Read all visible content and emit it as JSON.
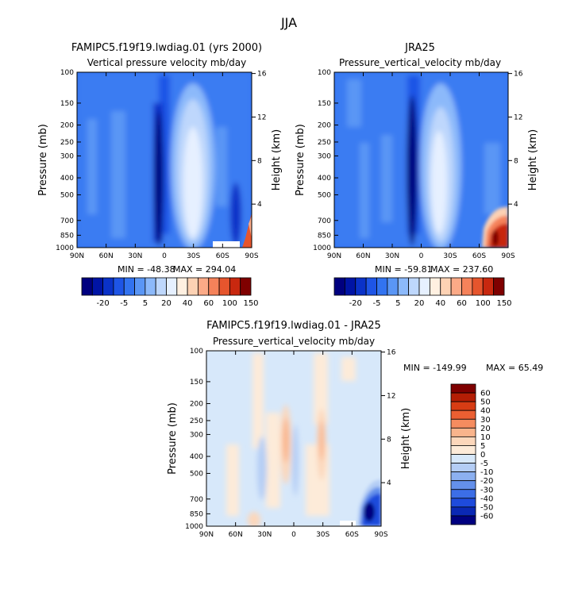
{
  "figure": {
    "title": "JJA"
  },
  "chart_data": [
    {
      "type": "heatmap",
      "title": "FAMIPC5.f19f19.lwdiag.01 (yrs 2000)",
      "subtitle": "Vertical pressure velocity mb/day",
      "ylabel": "Pressure (mb)",
      "y2label": "Height (km)",
      "x_ticks": [
        "90N",
        "60N",
        "30N",
        "0",
        "30S",
        "60S",
        "90S"
      ],
      "y_ticks": [
        "100",
        "150",
        "200",
        "250",
        "300",
        "400",
        "500",
        "700",
        "850",
        "1000"
      ],
      "y2_ticks": [
        "16",
        "12",
        "8",
        "4"
      ],
      "min_text": "MIN = -48.38",
      "max_text": "MAX = 294.04",
      "colorbar_labels": [
        "-20",
        "-5",
        "5",
        "20",
        "40",
        "60",
        "100",
        "150"
      ]
    },
    {
      "type": "heatmap",
      "title": "JRA25",
      "subtitle": "Pressure_vertical_velocity mb/day",
      "ylabel": "Pressure (mb)",
      "y2label": "Height (km)",
      "x_ticks": [
        "90N",
        "60N",
        "30N",
        "0",
        "30S",
        "60S",
        "90S"
      ],
      "y_ticks": [
        "100",
        "150",
        "200",
        "250",
        "300",
        "400",
        "500",
        "700",
        "850",
        "1000"
      ],
      "y2_ticks": [
        "16",
        "12",
        "8",
        "4"
      ],
      "min_text": "MIN = -59.81",
      "max_text": "MAX = 237.60",
      "colorbar_labels": [
        "-20",
        "-5",
        "5",
        "20",
        "40",
        "60",
        "100",
        "150"
      ]
    },
    {
      "type": "heatmap",
      "title": "FAMIPC5.f19f19.lwdiag.01 - JRA25",
      "subtitle": "Pressure_vertical_velocity mb/day",
      "ylabel": "Pressure (mb)",
      "y2label": "Height (km)",
      "x_ticks": [
        "90N",
        "60N",
        "30N",
        "0",
        "30S",
        "60S",
        "90S"
      ],
      "y_ticks": [
        "100",
        "150",
        "200",
        "250",
        "300",
        "400",
        "500",
        "700",
        "850",
        "1000"
      ],
      "y2_ticks": [
        "16",
        "12",
        "8",
        "4"
      ],
      "min_text": "MIN = -149.99",
      "max_text": "MAX = 65.49",
      "colorbar_labels": [
        "60",
        "50",
        "40",
        "30",
        "20",
        "10",
        "5",
        "0",
        "-5",
        "-10",
        "-20",
        "-30",
        "-40",
        "-50",
        "-60"
      ]
    }
  ],
  "colors": {
    "field_scale": [
      "#00007f",
      "#0014a5",
      "#0a32c8",
      "#1e55e6",
      "#3273f0",
      "#5a96f5",
      "#8cb9fa",
      "#bed7fc",
      "#e6f0ff",
      "#fff0e1",
      "#fdd2b4",
      "#fbaa87",
      "#f5825a",
      "#e6552d",
      "#c8280f",
      "#7f0000"
    ],
    "diff_scale": [
      "#7f0000",
      "#b41e05",
      "#d73c14",
      "#eb5f32",
      "#f58c5f",
      "#f9b48c",
      "#fcd7bb",
      "#fdebd9",
      "#d7e8fa",
      "#b4cdf5",
      "#8cb0f0",
      "#6490eb",
      "#3c6ee6",
      "#1e4bdc",
      "#0a28b4",
      "#000080"
    ]
  }
}
